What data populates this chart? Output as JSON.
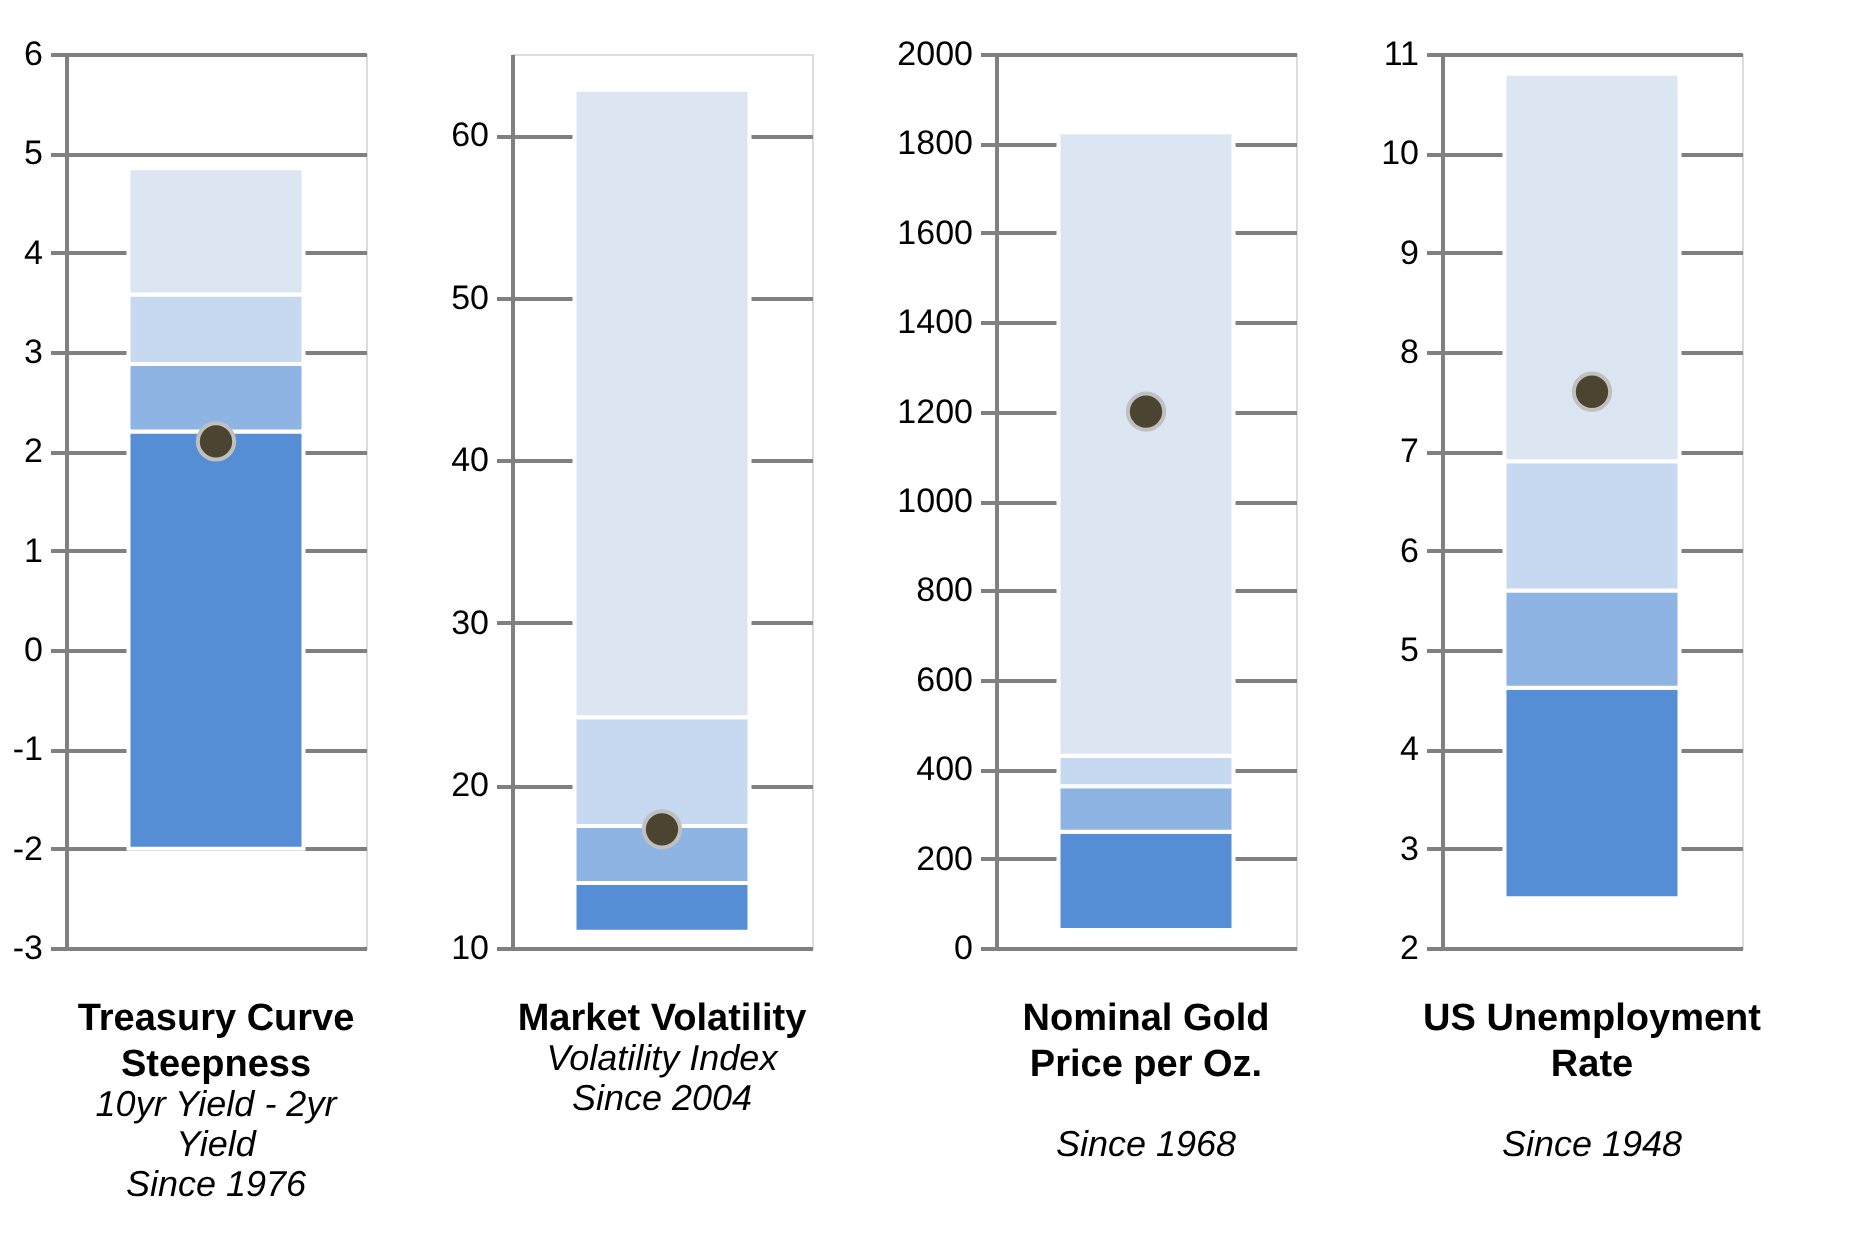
{
  "chart_data": [
    {
      "type": "bar",
      "title": "Treasury Curve Steepness",
      "subtitle": "10yr Yield - 2yr Yield",
      "annotations": [
        "Since 1976"
      ],
      "categories": [
        null
      ],
      "tick_labels": "y",
      "grid": "y",
      "ylim": [
        -3,
        6
      ],
      "yticks": [
        -3,
        -2,
        -1,
        0,
        1,
        2,
        3,
        4,
        5,
        6
      ],
      "series": [
        {
          "color": "#558ed5",
          "base": [
            -2
          ],
          "values": [
            4.2
          ]
        },
        {
          "color": "#8eb4e3",
          "base": [
            2.2
          ],
          "values": [
            0.68
          ]
        },
        {
          "color": "#c6d9f1",
          "base": [
            2.88
          ],
          "values": [
            0.7
          ]
        },
        {
          "color": "#dce6f2",
          "base": [
            3.58
          ],
          "values": [
            1.27
          ]
        },
        {
          "type": "scatter",
          "marker": "circle",
          "color": "#4a4430",
          "values": [
            2.1
          ]
        }
      ]
    },
    {
      "type": "bar",
      "title": "Market Volatility",
      "subtitle": "Volatility Index",
      "annotations": [
        "Since 2004"
      ],
      "categories": [
        null
      ],
      "tick_labels": "y",
      "grid": "y",
      "ylim": [
        10,
        65
      ],
      "yticks": [
        10,
        20,
        30,
        40,
        50,
        60
      ],
      "series": [
        {
          "color": "#558ed5",
          "base": [
            11
          ],
          "values": [
            3
          ]
        },
        {
          "color": "#8eb4e3",
          "base": [
            14
          ],
          "values": [
            3.5
          ]
        },
        {
          "color": "#c6d9f1",
          "base": [
            17.5
          ],
          "values": [
            6.7
          ]
        },
        {
          "color": "#dce6f2",
          "base": [
            24.2
          ],
          "values": [
            38.6
          ]
        },
        {
          "type": "scatter",
          "marker": "circle",
          "color": "#4a4430",
          "values": [
            17.3
          ]
        }
      ]
    },
    {
      "type": "bar",
      "title": "Nominal Gold Price per Oz.",
      "annotations": [
        "Since 1968"
      ],
      "categories": [
        null
      ],
      "tick_labels": "y",
      "grid": "y",
      "ylim": [
        0,
        2000
      ],
      "yticks": [
        0,
        200,
        400,
        600,
        800,
        1000,
        1200,
        1400,
        1600,
        1800,
        2000
      ],
      "series": [
        {
          "color": "#558ed5",
          "base": [
            40
          ],
          "values": [
            220
          ]
        },
        {
          "color": "#8eb4e3",
          "base": [
            260
          ],
          "values": [
            102
          ]
        },
        {
          "color": "#c6d9f1",
          "base": [
            362
          ],
          "values": [
            68
          ]
        },
        {
          "color": "#dce6f2",
          "base": [
            430
          ],
          "values": [
            1395
          ]
        },
        {
          "type": "scatter",
          "marker": "circle",
          "color": "#4a4430",
          "values": [
            1200
          ]
        }
      ]
    },
    {
      "type": "bar",
      "title": "US Unemployment Rate",
      "annotations": [
        "Since 1948"
      ],
      "categories": [
        null
      ],
      "tick_labels": "y",
      "grid": "y",
      "ylim": [
        2,
        11
      ],
      "yticks": [
        2,
        3,
        4,
        5,
        6,
        7,
        8,
        9,
        10,
        11
      ],
      "series": [
        {
          "color": "#558ed5",
          "base": [
            2.5
          ],
          "values": [
            2.12
          ]
        },
        {
          "color": "#8eb4e3",
          "base": [
            4.62
          ],
          "values": [
            0.98
          ]
        },
        {
          "color": "#c6d9f1",
          "base": [
            5.6
          ],
          "values": [
            1.3
          ]
        },
        {
          "color": "#dce6f2",
          "base": [
            6.9
          ],
          "values": [
            3.9
          ]
        },
        {
          "type": "scatter",
          "marker": "circle",
          "color": "#4a4430",
          "values": [
            7.6
          ]
        }
      ]
    }
  ]
}
